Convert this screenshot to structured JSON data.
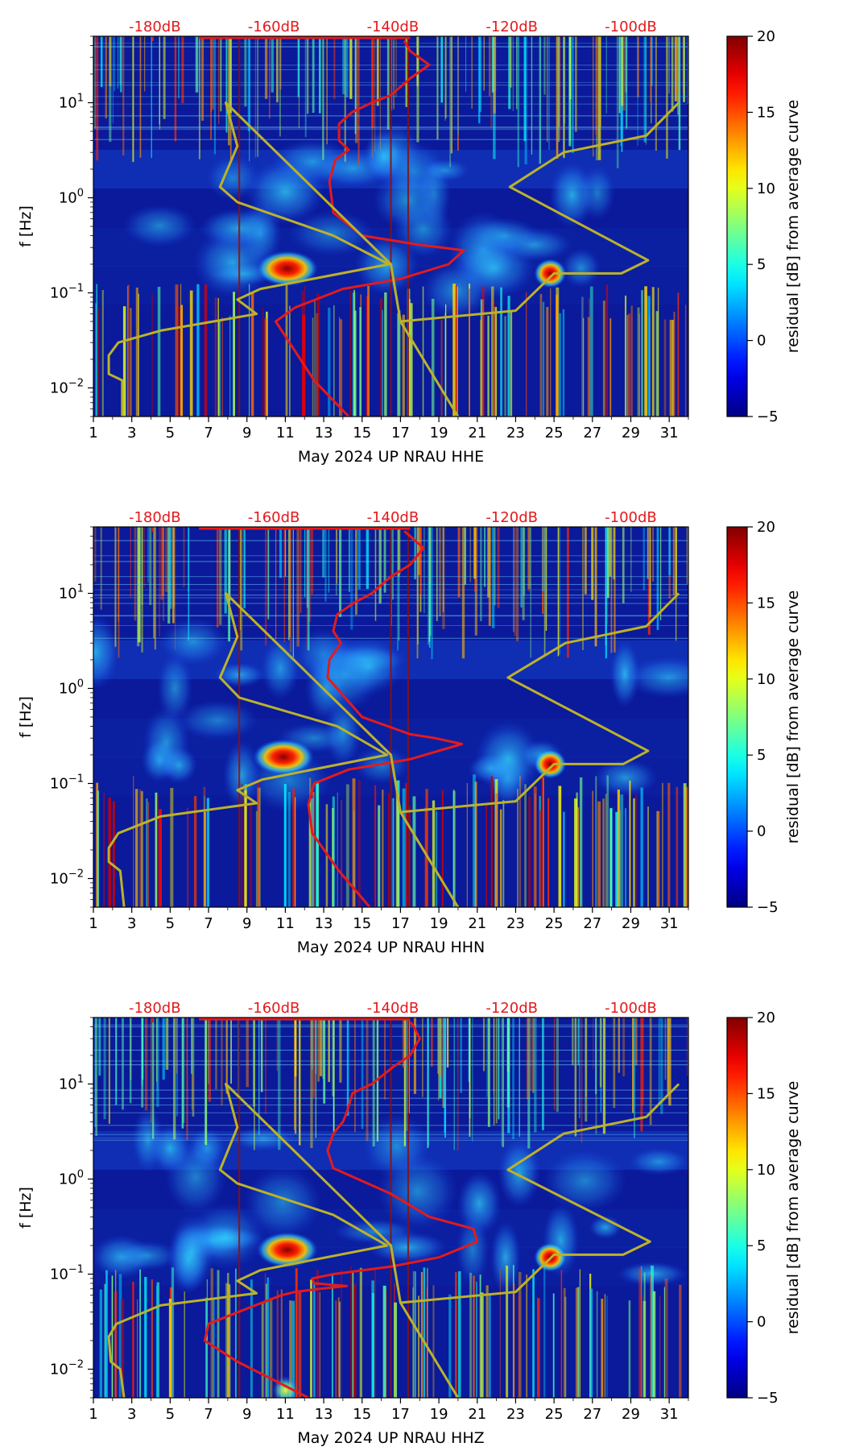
{
  "colors": {
    "noise_curve": "#e41a1c",
    "model_curve": "#bcb22a",
    "top_label": "#e41a1c",
    "background": "#0a1a9a"
  },
  "colorbar": {
    "label": "residual [dB] from average curve",
    "ticks": [
      "20",
      "15",
      "10",
      "5",
      "0",
      "−5"
    ],
    "range": [
      -5,
      20
    ],
    "colormap": "jet"
  },
  "chart_data": [
    {
      "type": "heatmap",
      "title": "",
      "xlabel": "May 2024 UP NRAU  HHE",
      "ylabel": "f [Hz]",
      "x_ticks": [
        "1",
        "3",
        "5",
        "7",
        "9",
        "11",
        "13",
        "15",
        "17",
        "19",
        "21",
        "23",
        "25",
        "27",
        "29",
        "31"
      ],
      "y_ticks": [
        "10^1",
        "10^0",
        "10^−1",
        "10^−2"
      ],
      "top_ticks": [
        "-180dB",
        "-160dB",
        "-140dB",
        "-120dB",
        "-100dB"
      ],
      "xlim": [
        1,
        32
      ],
      "ylim_hz": [
        0.005,
        50
      ],
      "hotspots": [
        {
          "day": 11.1,
          "f_hz": 0.18,
          "level_db": 20
        },
        {
          "day": 24.8,
          "f_hz": 0.16,
          "level_db": 20
        }
      ],
      "series": [
        {
          "color": "red",
          "points": [
            [
              14.3,
              0.005
            ],
            [
              12.5,
              0.012
            ],
            [
              11,
              0.035
            ],
            [
              10.5,
              0.05
            ],
            [
              11.5,
              0.07
            ],
            [
              14,
              0.11
            ],
            [
              17,
              0.14
            ],
            [
              19.5,
              0.2
            ],
            [
              20.3,
              0.28
            ],
            [
              18,
              0.32
            ],
            [
              15,
              0.4
            ],
            [
              13.5,
              0.7
            ],
            [
              13.3,
              1.5
            ],
            [
              13.6,
              2.5
            ],
            [
              14.3,
              3.2
            ],
            [
              13.8,
              4
            ],
            [
              13.8,
              6
            ],
            [
              14.5,
              8
            ],
            [
              15.5,
              10
            ],
            [
              16.5,
              12
            ],
            [
              17.5,
              18
            ],
            [
              18.5,
              25
            ],
            [
              17.5,
              35
            ],
            [
              17.2,
              45
            ]
          ]
        },
        {
          "color": "yellow",
          "points": [
            [
              2.5,
              0.005
            ],
            [
              2.5,
              0.012
            ],
            [
              1.8,
              0.014
            ],
            [
              1.8,
              0.022
            ],
            [
              2.3,
              0.03
            ],
            [
              4.5,
              0.04
            ],
            [
              9.5,
              0.06
            ],
            [
              8.5,
              0.085
            ],
            [
              9.7,
              0.11
            ],
            [
              16.4,
              0.2
            ],
            [
              13.5,
              0.4
            ],
            [
              8.5,
              0.9
            ],
            [
              7.6,
              1.3
            ],
            [
              8.5,
              3.5
            ],
            [
              7.9,
              10
            ],
            [
              16.5,
              0.2
            ],
            [
              17,
              0.05
            ],
            [
              20,
              0.005
            ],
            [
              17,
              0.05
            ],
            [
              23,
              0.065
            ],
            [
              25,
              0.16
            ],
            [
              28.5,
              0.16
            ],
            [
              29.9,
              0.22
            ],
            [
              22.7,
              1.3
            ],
            [
              25.5,
              3
            ],
            [
              29.8,
              4.5
            ],
            [
              31.5,
              10
            ]
          ]
        }
      ]
    },
    {
      "type": "heatmap",
      "title": "",
      "xlabel": "May 2024 UP NRAU  HHN",
      "ylabel": "f [Hz]",
      "x_ticks": [
        "1",
        "3",
        "5",
        "7",
        "9",
        "11",
        "13",
        "15",
        "17",
        "19",
        "21",
        "23",
        "25",
        "27",
        "29",
        "31"
      ],
      "y_ticks": [
        "10^1",
        "10^0",
        "10^−1",
        "10^−2"
      ],
      "top_ticks": [
        "-180dB",
        "-160dB",
        "-140dB",
        "-120dB",
        "-100dB"
      ],
      "xlim": [
        1,
        32
      ],
      "ylim_hz": [
        0.005,
        50
      ],
      "hotspots": [
        {
          "day": 10.9,
          "f_hz": 0.19,
          "level_db": 20
        },
        {
          "day": 24.8,
          "f_hz": 0.16,
          "level_db": 20
        }
      ],
      "series": [
        {
          "color": "red",
          "points": [
            [
              15.4,
              0.005
            ],
            [
              13.8,
              0.012
            ],
            [
              12.4,
              0.03
            ],
            [
              12.2,
              0.06
            ],
            [
              12.5,
              0.1
            ],
            [
              14.3,
              0.14
            ],
            [
              17.5,
              0.18
            ],
            [
              20.2,
              0.26
            ],
            [
              18.8,
              0.3
            ],
            [
              17.5,
              0.33
            ],
            [
              15,
              0.5
            ],
            [
              13.2,
              1.3
            ],
            [
              13.3,
              2
            ],
            [
              13.9,
              3
            ],
            [
              13.5,
              4
            ],
            [
              13.7,
              6
            ],
            [
              14.6,
              8
            ],
            [
              15.5,
              10
            ],
            [
              16.5,
              15
            ],
            [
              17.5,
              20
            ],
            [
              18.2,
              30
            ],
            [
              17.5,
              40
            ],
            [
              17.2,
              45
            ]
          ]
        },
        {
          "color": "yellow",
          "points": [
            [
              2.6,
              0.005
            ],
            [
              2.4,
              0.012
            ],
            [
              1.8,
              0.015
            ],
            [
              1.8,
              0.021
            ],
            [
              2.3,
              0.03
            ],
            [
              4.5,
              0.045
            ],
            [
              9.5,
              0.062
            ],
            [
              8.5,
              0.085
            ],
            [
              9.8,
              0.11
            ],
            [
              16.3,
              0.2
            ],
            [
              13.7,
              0.4
            ],
            [
              8.6,
              0.8
            ],
            [
              7.6,
              1.3
            ],
            [
              8.5,
              3.5
            ],
            [
              7.9,
              10
            ],
            [
              16.5,
              0.2
            ],
            [
              17,
              0.05
            ],
            [
              20,
              0.005
            ],
            [
              17,
              0.05
            ],
            [
              23,
              0.065
            ],
            [
              25,
              0.16
            ],
            [
              28.6,
              0.16
            ],
            [
              29.9,
              0.22
            ],
            [
              22.6,
              1.3
            ],
            [
              25.6,
              3
            ],
            [
              29.8,
              4.5
            ],
            [
              31.5,
              10
            ]
          ]
        }
      ]
    },
    {
      "type": "heatmap",
      "title": "",
      "xlabel": "May 2024 UP NRAU  HHZ",
      "ylabel": "f [Hz]",
      "x_ticks": [
        "1",
        "3",
        "5",
        "7",
        "9",
        "11",
        "13",
        "15",
        "17",
        "19",
        "21",
        "23",
        "25",
        "27",
        "29",
        "31"
      ],
      "y_ticks": [
        "10^1",
        "10^0",
        "10^−1",
        "10^−2"
      ],
      "top_ticks": [
        "-180dB",
        "-160dB",
        "-140dB",
        "-120dB",
        "-100dB"
      ],
      "xlim": [
        1,
        32
      ],
      "ylim_hz": [
        0.005,
        50
      ],
      "hotspots": [
        {
          "day": 11.1,
          "f_hz": 0.18,
          "level_db": 20
        },
        {
          "day": 24.8,
          "f_hz": 0.15,
          "level_db": 20
        },
        {
          "day": 11.0,
          "f_hz": 0.006,
          "level_db": 12
        }
      ],
      "series": [
        {
          "color": "red",
          "points": [
            [
              12.2,
              0.005
            ],
            [
              10.8,
              0.007
            ],
            [
              8.5,
              0.012
            ],
            [
              6.8,
              0.02
            ],
            [
              7,
              0.03
            ],
            [
              9.2,
              0.045
            ],
            [
              10.8,
              0.06
            ],
            [
              11.5,
              0.065
            ],
            [
              12.8,
              0.07
            ],
            [
              14.2,
              0.075
            ],
            [
              12.5,
              0.08
            ],
            [
              12.4,
              0.09
            ],
            [
              13.5,
              0.1
            ],
            [
              16.5,
              0.12
            ],
            [
              19,
              0.15
            ],
            [
              21,
              0.22
            ],
            [
              20.8,
              0.3
            ],
            [
              18.5,
              0.4
            ],
            [
              16.5,
              0.7
            ],
            [
              13.5,
              1.3
            ],
            [
              13.2,
              2
            ],
            [
              13.5,
              3
            ],
            [
              14,
              4
            ],
            [
              14.2,
              5
            ],
            [
              14.5,
              8
            ],
            [
              15.5,
              10
            ],
            [
              16.6,
              15
            ],
            [
              17.5,
              20
            ],
            [
              18,
              30
            ],
            [
              17.7,
              40
            ],
            [
              17.5,
              45
            ]
          ]
        },
        {
          "color": "yellow",
          "points": [
            [
              2.6,
              0.005
            ],
            [
              2.4,
              0.01
            ],
            [
              1.9,
              0.012
            ],
            [
              1.8,
              0.022
            ],
            [
              2.2,
              0.03
            ],
            [
              4.5,
              0.047
            ],
            [
              9.5,
              0.063
            ],
            [
              8.5,
              0.085
            ],
            [
              9.7,
              0.11
            ],
            [
              16.3,
              0.2
            ],
            [
              13.5,
              0.42
            ],
            [
              8.5,
              0.9
            ],
            [
              7.6,
              1.25
            ],
            [
              8.5,
              3.5
            ],
            [
              7.9,
              10
            ],
            [
              16.5,
              0.2
            ],
            [
              17,
              0.05
            ],
            [
              20,
              0.005
            ],
            [
              17,
              0.05
            ],
            [
              23,
              0.065
            ],
            [
              25,
              0.16
            ],
            [
              28.6,
              0.16
            ],
            [
              30,
              0.22
            ],
            [
              22.6,
              1.25
            ],
            [
              25.5,
              3
            ],
            [
              29.8,
              4.5
            ],
            [
              31.5,
              10
            ]
          ]
        }
      ]
    }
  ]
}
